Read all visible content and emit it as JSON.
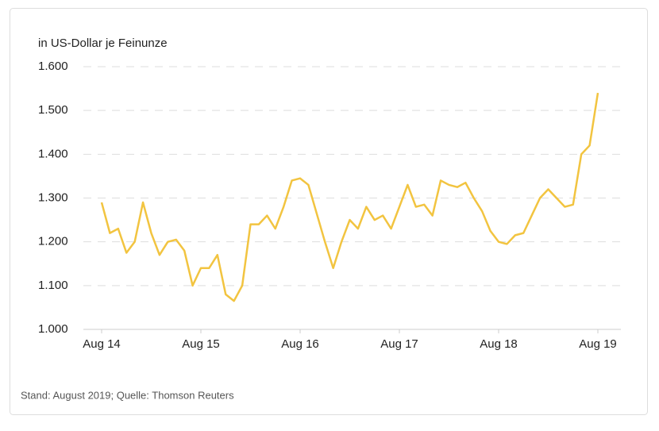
{
  "chart_data": {
    "type": "line",
    "y_label": "in US-Dollar je Feinunze",
    "source": "Stand: August 2019; Quelle: Thomson Reuters",
    "x": [
      "2014-08",
      "2014-09",
      "2014-10",
      "2014-11",
      "2014-12",
      "2015-01",
      "2015-02",
      "2015-03",
      "2015-04",
      "2015-05",
      "2015-06",
      "2015-07",
      "2015-08",
      "2015-09",
      "2015-10",
      "2015-11",
      "2015-12",
      "2016-01",
      "2016-02",
      "2016-03",
      "2016-04",
      "2016-05",
      "2016-06",
      "2016-07",
      "2016-08",
      "2016-09",
      "2016-10",
      "2016-11",
      "2016-12",
      "2017-01",
      "2017-02",
      "2017-03",
      "2017-04",
      "2017-05",
      "2017-06",
      "2017-07",
      "2017-08",
      "2017-09",
      "2017-10",
      "2017-11",
      "2017-12",
      "2018-01",
      "2018-02",
      "2018-03",
      "2018-04",
      "2018-05",
      "2018-06",
      "2018-07",
      "2018-08",
      "2018-09",
      "2018-10",
      "2018-11",
      "2018-12",
      "2019-01",
      "2019-02",
      "2019-03",
      "2019-04",
      "2019-05",
      "2019-06",
      "2019-07",
      "2019-08"
    ],
    "series": [
      {
        "color": "#f2c440",
        "values": [
          1290,
          1220,
          1230,
          1175,
          1200,
          1290,
          1220,
          1170,
          1200,
          1205,
          1180,
          1100,
          1140,
          1140,
          1170,
          1080,
          1065,
          1100,
          1240,
          1240,
          1260,
          1230,
          1280,
          1340,
          1345,
          1330,
          1265,
          1200,
          1140,
          1200,
          1250,
          1230,
          1280,
          1250,
          1260,
          1230,
          1280,
          1330,
          1280,
          1285,
          1260,
          1340,
          1330,
          1325,
          1335,
          1300,
          1270,
          1225,
          1200,
          1195,
          1215,
          1220,
          1260,
          1300,
          1320,
          1300,
          1280,
          1285,
          1400,
          1420,
          1540
        ]
      }
    ],
    "xlim": [
      "2014-08",
      "2019-08"
    ],
    "xticks": [
      {
        "value": "2014-08",
        "label": "Aug 14"
      },
      {
        "value": "2015-08",
        "label": "Aug 15"
      },
      {
        "value": "2016-08",
        "label": "Aug 16"
      },
      {
        "value": "2017-08",
        "label": "Aug 17"
      },
      {
        "value": "2018-08",
        "label": "Aug 18"
      },
      {
        "value": "2019-08",
        "label": "Aug 19"
      }
    ],
    "ylim": [
      1000,
      1600
    ],
    "yticks": [
      {
        "value": 1000,
        "label": "1.000"
      },
      {
        "value": 1100,
        "label": "1.100"
      },
      {
        "value": 1200,
        "label": "1.200"
      },
      {
        "value": 1300,
        "label": "1.300"
      },
      {
        "value": 1400,
        "label": "1.400"
      },
      {
        "value": 1500,
        "label": "1.500"
      },
      {
        "value": 1600,
        "label": "1.600"
      }
    ],
    "grid": true
  }
}
